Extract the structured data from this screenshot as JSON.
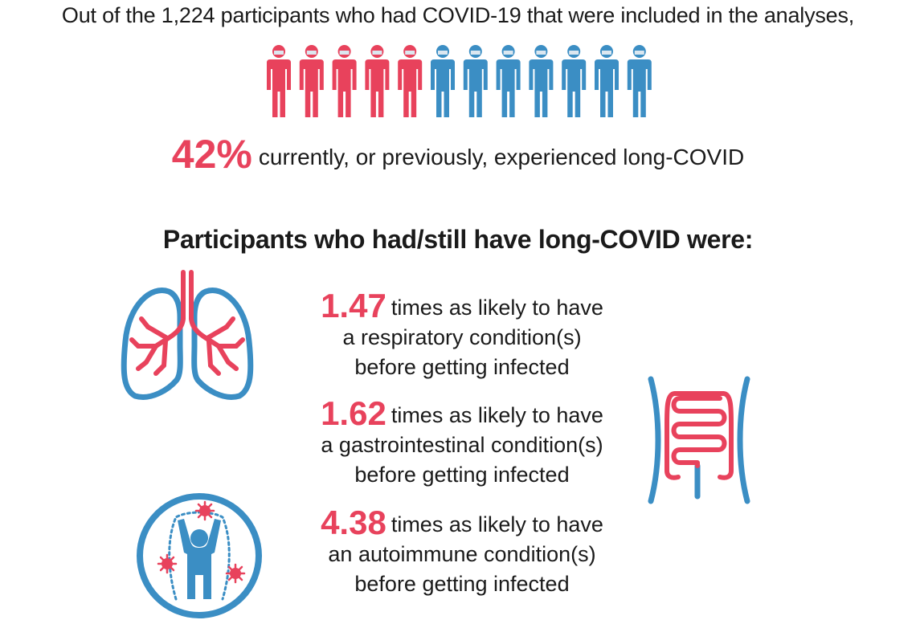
{
  "colors": {
    "accent_red": "#e8425c",
    "accent_blue": "#3b8ec4",
    "text": "#1a1a1a"
  },
  "intro": "Out of the 1,224 participants who had COVID-19 that were included in the analyses,",
  "pictogram": {
    "icon": "person-icon",
    "total": 12,
    "highlighted": 5,
    "icon_fraction_red": 0.42
  },
  "stat": {
    "value": "42%",
    "text": "currently, or previously, experienced long-COVID"
  },
  "subhead": "Participants who had/still have long-COVID were:",
  "findings": [
    {
      "value": "1.47",
      "line1": "times as likely to have",
      "line2": "a respiratory condition(s)",
      "line3": "before getting infected",
      "icon": "lungs-icon"
    },
    {
      "value": "1.62",
      "line1": "times as likely to have",
      "line2": "a gastrointestinal condition(s)",
      "line3": "before getting infected",
      "icon": "intestine-icon"
    },
    {
      "value": "4.38",
      "line1": "times as likely to have",
      "line2": "an autoimmune condition(s)",
      "line3": "before getting infected",
      "icon": "autoimmune-icon"
    }
  ]
}
